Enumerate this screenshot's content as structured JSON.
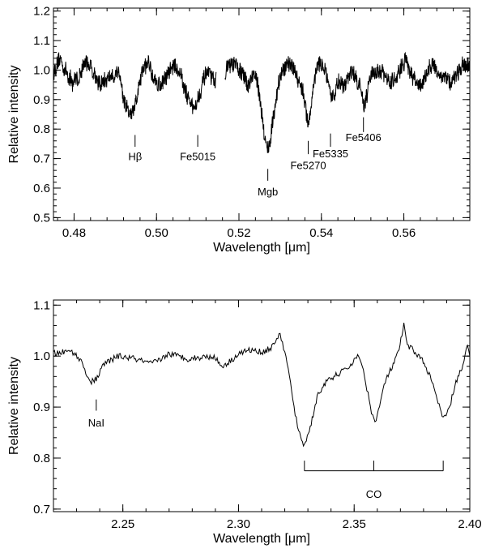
{
  "chart_data": [
    {
      "type": "line",
      "xlabel": "Wavelength [μm]",
      "ylabel": "Relative intensity",
      "xlim": [
        0.475,
        0.576
      ],
      "ylim": [
        0.49,
        1.21
      ],
      "xticks": [
        0.48,
        0.5,
        0.52,
        0.54,
        0.56
      ],
      "xtick_labels": [
        "0.48",
        "0.50",
        "0.52",
        "0.54",
        "0.56"
      ],
      "yticks": [
        0.5,
        0.6,
        0.7,
        0.8,
        0.9,
        1.0,
        1.1,
        1.2
      ],
      "ytick_labels": [
        "0.5",
        "0.6",
        "0.7",
        "0.8",
        "0.9",
        "1.0",
        "1.1",
        "1.2"
      ],
      "grid": false,
      "gaps": [
        [
          0.5145,
          0.5165
        ]
      ],
      "noise": 0.028,
      "continuum": 0.985,
      "absorption": [
        {
          "center": 0.4935,
          "depth": 0.09,
          "width": 0.0028
        },
        {
          "center": 0.5098,
          "depth": 0.085,
          "width": 0.0025
        },
        {
          "center": 0.5268,
          "depth": 0.24,
          "width": 0.0018
        },
        {
          "center": 0.5369,
          "depth": 0.13,
          "width": 0.0012
        },
        {
          "center": 0.5425,
          "depth": 0.07,
          "width": 0.001
        },
        {
          "center": 0.5455,
          "depth": 0.06,
          "width": 0.001
        },
        {
          "center": 0.5505,
          "depth": 0.06,
          "width": 0.0008
        }
      ],
      "annotations": [
        {
          "label": "Hβ",
          "x": 0.4948,
          "tick_y": [
            0.74,
            0.78
          ],
          "label_y": 0.695
        },
        {
          "label": "Fe5015",
          "x": 0.51,
          "tick_y": [
            0.74,
            0.78
          ],
          "label_y": 0.695
        },
        {
          "label": "Mgb",
          "x": 0.527,
          "tick_y": [
            0.625,
            0.665
          ],
          "label_y": 0.575
        },
        {
          "label": "Fe5270",
          "x": 0.5368,
          "tick_y": [
            0.715,
            0.76
          ],
          "label_y": 0.665
        },
        {
          "label": "Fe5335",
          "x": 0.5422,
          "tick_y": [
            0.74,
            0.785
          ],
          "label_y": 0.705
        },
        {
          "label": "Fe5406",
          "x": 0.5502,
          "tick_y": [
            0.79,
            0.84
          ],
          "label_y": 0.76
        }
      ]
    },
    {
      "type": "line",
      "xlabel": "Wavelength [μm]",
      "ylabel": "Relative intensity",
      "xlim": [
        2.22,
        2.4
      ],
      "ylim": [
        0.695,
        1.11
      ],
      "xticks": [
        2.25,
        2.3,
        2.35,
        2.4
      ],
      "xtick_labels": [
        "2.25",
        "2.30",
        "2.35",
        "2.40"
      ],
      "yticks": [
        0.7,
        0.8,
        0.9,
        1.0,
        1.1
      ],
      "ytick_labels": [
        "0.7",
        "0.8",
        "0.9",
        "1.0",
        "1.1"
      ],
      "grid": false,
      "noise": 0.006,
      "points": [
        [
          2.22,
          1.005
        ],
        [
          2.228,
          1.01
        ],
        [
          2.232,
          0.99
        ],
        [
          2.234,
          0.97
        ],
        [
          2.236,
          0.948
        ],
        [
          2.2385,
          0.955
        ],
        [
          2.242,
          0.985
        ],
        [
          2.248,
          1.0
        ],
        [
          2.255,
          0.995
        ],
        [
          2.262,
          0.985
        ],
        [
          2.265,
          0.99
        ],
        [
          2.27,
          1.005
        ],
        [
          2.278,
          0.995
        ],
        [
          2.285,
          0.998
        ],
        [
          2.289,
          1.0
        ],
        [
          2.293,
          0.98
        ],
        [
          2.297,
          0.992
        ],
        [
          2.3,
          1.005
        ],
        [
          2.305,
          1.012
        ],
        [
          2.31,
          1.008
        ],
        [
          2.314,
          1.015
        ],
        [
          2.316,
          1.032
        ],
        [
          2.318,
          1.04
        ],
        [
          2.32,
          1.01
        ],
        [
          2.322,
          0.96
        ],
        [
          2.324,
          0.9
        ],
        [
          2.326,
          0.85
        ],
        [
          2.3285,
          0.825
        ],
        [
          2.331,
          0.86
        ],
        [
          2.334,
          0.92
        ],
        [
          2.337,
          0.945
        ],
        [
          2.34,
          0.955
        ],
        [
          2.343,
          0.965
        ],
        [
          2.346,
          0.972
        ],
        [
          2.349,
          0.985
        ],
        [
          2.351,
          1.0
        ],
        [
          2.353,
          0.99
        ],
        [
          2.355,
          0.95
        ],
        [
          2.357,
          0.9
        ],
        [
          2.359,
          0.87
        ],
        [
          2.361,
          0.9
        ],
        [
          2.363,
          0.945
        ],
        [
          2.366,
          0.975
        ],
        [
          2.369,
          1.005
        ],
        [
          2.3715,
          1.06
        ],
        [
          2.373,
          1.02
        ],
        [
          2.376,
          1.01
        ],
        [
          2.379,
          0.995
        ],
        [
          2.382,
          0.97
        ],
        [
          2.385,
          0.93
        ],
        [
          2.3885,
          0.875
        ],
        [
          2.391,
          0.895
        ],
        [
          2.394,
          0.95
        ],
        [
          2.397,
          0.98
        ],
        [
          2.399,
          1.02
        ],
        [
          2.4,
          1.0
        ]
      ],
      "annotations": [
        {
          "label": "NaI",
          "x": 2.2385,
          "tick_y": [
            0.893,
            0.915
          ],
          "label_y": 0.862
        }
      ],
      "bracket": {
        "label": "CO",
        "x": [
          2.3285,
          2.3585,
          2.3885
        ],
        "y": 0.775,
        "tick_top": 0.795,
        "label_y": 0.722
      }
    }
  ]
}
